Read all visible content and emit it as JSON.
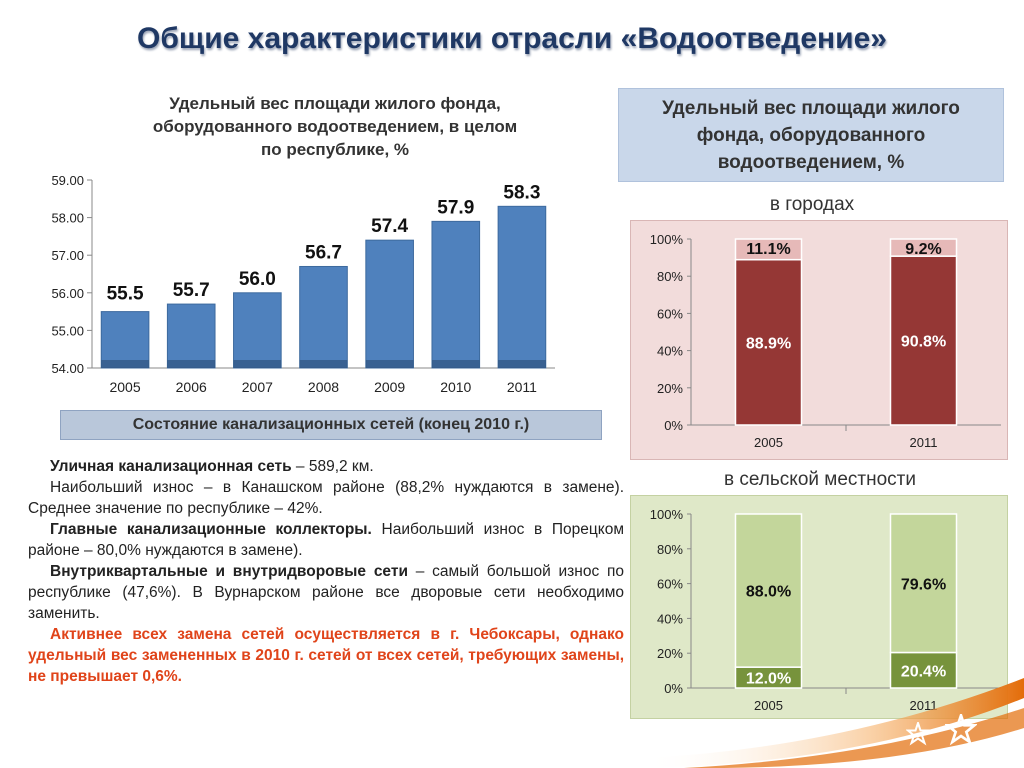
{
  "page": {
    "title": "Общие характеристики отрасли «Водоотведение»"
  },
  "left_chart": {
    "title_lines": [
      "Удельный вес площади жилого фонда,",
      "оборудованного водоотведением, в целом",
      "по республике, %"
    ]
  },
  "right_box": {
    "lines": [
      "Удельный вес площади жилого",
      "фонда, оборудованного",
      "водоотведением, %"
    ]
  },
  "cities_label": "в городах",
  "rural_label": "в сельской местности",
  "network_banner": "Состояние канализационных сетей (конец 2010 г.)",
  "paragraphs": [
    {
      "bold": "Уличная канализационная сеть",
      "text": " – 589,2 км."
    },
    {
      "bold": "",
      "text": "Наибольший износ – в Канашском районе (88,2% нуждаются в замене). Среднее значение по республике – 42%."
    },
    {
      "bold": "Главные канализационные коллекторы.",
      "text": " Наибольший износ в Порецком районе –  80,0% нуждаются в замене)."
    },
    {
      "bold": "Внутриквартальные и внутридворовые сети",
      "text": " – самый большой износ по республике (47,6%). В Вурнарском районе все дворовые сети необходимо заменить."
    },
    {
      "red": "Активнее всех замена сетей осуществляется в г. Чебоксары, однако удельный вес замененных в 2010 г. сетей от всех сетей, требующих замены, не превышает 0,6%."
    }
  ],
  "colors": {
    "title": "#1f3864",
    "bar_blue": "#4f81bd",
    "dark_red": "#953735",
    "light_pink": "#e6b9b8",
    "olive": "#77933c",
    "light_olive": "#c3d69b",
    "red_text": "#e0441a"
  },
  "chart_data": [
    {
      "type": "bar",
      "categories": [
        "2005",
        "2006",
        "2007",
        "2008",
        "2009",
        "2010",
        "2011"
      ],
      "values": [
        55.5,
        55.7,
        56.0,
        56.7,
        57.4,
        57.9,
        58.3
      ],
      "data_labels": [
        "55.5",
        "55.7",
        "56.0",
        "56.7",
        "57.4",
        "57.9",
        "58.3"
      ],
      "ylim": [
        54.0,
        59.0
      ],
      "yticks": [
        "54.00",
        "55.00",
        "56.00",
        "57.00",
        "58.00",
        "59.00"
      ],
      "grid": false
    },
    {
      "type": "bar",
      "stacked": "percent",
      "categories": [
        "2005",
        "2011"
      ],
      "series": [
        {
          "values": [
            88.9,
            90.8
          ],
          "labels": [
            "88.9%",
            "90.8%"
          ]
        },
        {
          "values": [
            11.1,
            9.2
          ],
          "labels": [
            "11.1%",
            "9.2%"
          ]
        }
      ],
      "yticks": [
        "0%",
        "20%",
        "40%",
        "60%",
        "80%",
        "100%"
      ]
    },
    {
      "type": "bar",
      "stacked": "percent",
      "categories": [
        "2005",
        "2011"
      ],
      "series": [
        {
          "values": [
            12.0,
            20.4
          ],
          "labels": [
            "12.0%",
            "20.4%"
          ]
        },
        {
          "values": [
            88.0,
            79.6
          ],
          "labels": [
            "88.0%",
            "79.6%"
          ]
        }
      ],
      "yticks": [
        "0%",
        "20%",
        "40%",
        "60%",
        "80%",
        "100%"
      ]
    }
  ]
}
